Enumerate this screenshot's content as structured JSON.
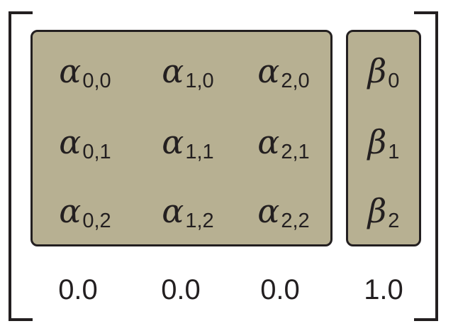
{
  "matrix": {
    "alpha_rows": [
      [
        {
          "symbol": "α",
          "sub": "0,0"
        },
        {
          "symbol": "α",
          "sub": "1,0"
        },
        {
          "symbol": "α",
          "sub": "2,0"
        }
      ],
      [
        {
          "symbol": "α",
          "sub": "0,1"
        },
        {
          "symbol": "α",
          "sub": "1,1"
        },
        {
          "symbol": "α",
          "sub": "2,1"
        }
      ],
      [
        {
          "symbol": "α",
          "sub": "0,2"
        },
        {
          "symbol": "α",
          "sub": "1,2"
        },
        {
          "symbol": "α",
          "sub": "2,2"
        }
      ]
    ],
    "beta_rows": [
      {
        "symbol": "β",
        "sub": "0"
      },
      {
        "symbol": "β",
        "sub": "1"
      },
      {
        "symbol": "β",
        "sub": "2"
      }
    ],
    "bottom_row": [
      "0.0",
      "0.0",
      "0.0",
      "1.0"
    ],
    "colors": {
      "panel_fill": "#b7b092",
      "line": "#231f20",
      "background": "#ffffff"
    }
  }
}
